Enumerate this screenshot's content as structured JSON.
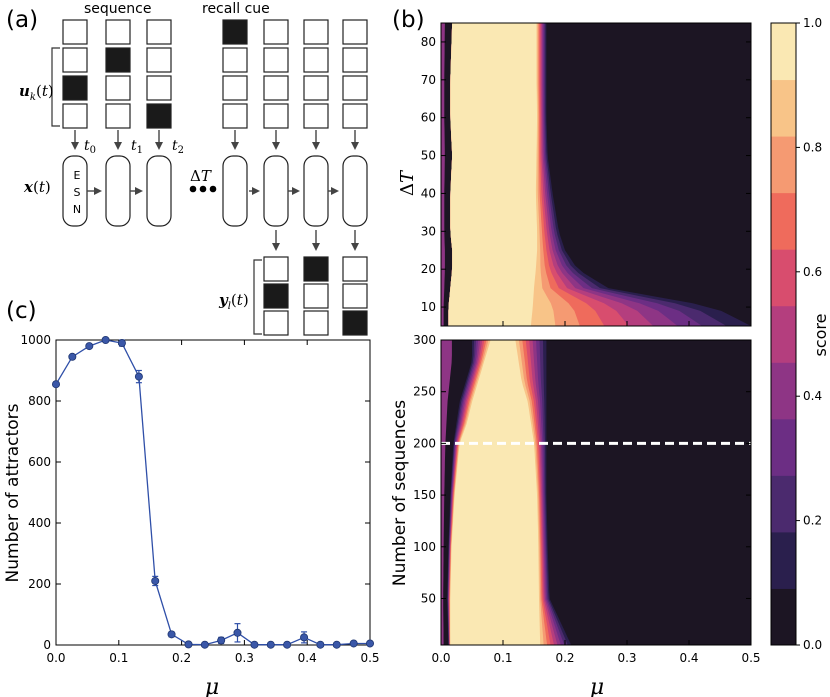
{
  "panel_a": {
    "label": "(a)",
    "sequence_label": "sequence",
    "recall_label": "recall cue",
    "input_label": "u_k(t)",
    "state_label": "x(t)",
    "output_label": "y_l(t)",
    "esn_letters": [
      "E",
      "S",
      "N"
    ],
    "time_labels": [
      "t0",
      "t1",
      "t2"
    ],
    "delta_label": "ΔT",
    "input_columns": [
      {
        "filled": [
          false,
          false,
          true,
          false
        ]
      },
      {
        "filled": [
          false,
          true,
          false,
          false
        ]
      },
      {
        "filled": [
          false,
          false,
          false,
          true
        ]
      },
      {
        "filled": [
          true,
          false,
          false,
          false
        ]
      },
      {
        "filled": [
          false,
          false,
          false,
          false
        ]
      },
      {
        "filled": [
          false,
          false,
          false,
          false
        ]
      },
      {
        "filled": [
          false,
          false,
          false,
          false
        ]
      }
    ],
    "output_columns": [
      {
        "filled": [
          false,
          true,
          false
        ]
      },
      {
        "filled": [
          true,
          false,
          false
        ]
      },
      {
        "filled": [
          false,
          false,
          true
        ]
      }
    ]
  },
  "panel_b": {
    "label": "(b)",
    "xlabel": "μ",
    "colorbar_label": "score",
    "colorbar_ticks": [
      "0.0",
      "0.2",
      "0.4",
      "0.6",
      "0.8",
      "1.0"
    ],
    "colors": [
      "#1c1523",
      "#2a1f4d",
      "#4b2a6e",
      "#6c2e84",
      "#8e3585",
      "#b43e7e",
      "#d84d6e",
      "#ef6b5c",
      "#f59a72",
      "#f8c488",
      "#fae8b3"
    ],
    "x_ticks": [
      "0.0",
      "0.1",
      "0.2",
      "0.3",
      "0.4",
      "0.5"
    ]
  },
  "panel_c": {
    "label": "(c)"
  },
  "chart_data": [
    {
      "type": "heatmap",
      "title": "",
      "xlabel": "μ",
      "ylabel": "ΔT",
      "xlim": [
        0,
        0.5
      ],
      "ylim": [
        5,
        85
      ],
      "yticks": [
        10,
        20,
        30,
        40,
        50,
        60,
        70,
        80
      ],
      "ytick_labels": [
        "10",
        "20",
        "30",
        "40",
        "50",
        "60",
        "70",
        "80"
      ],
      "colorbar": {
        "label": "score",
        "range": [
          0,
          1
        ]
      },
      "profile_y": [
        5,
        10,
        15,
        20,
        25,
        30,
        40,
        50,
        60,
        70,
        85
      ],
      "left_edge_mu": [
        0.012,
        0.012,
        0.015,
        0.018,
        0.018,
        0.015,
        0.015,
        0.018,
        0.015,
        0.015,
        0.018
      ],
      "plateau_right_mu": [
        0.145,
        0.148,
        0.15,
        0.153,
        0.155,
        0.155,
        0.153,
        0.154,
        0.155,
        0.154,
        0.154
      ],
      "right_edge_mu": [
        0.5,
        0.44,
        0.27,
        0.22,
        0.2,
        0.19,
        0.18,
        0.172,
        0.17,
        0.17,
        0.17
      ]
    },
    {
      "type": "heatmap",
      "title": "",
      "xlabel": "μ",
      "ylabel": "Number of sequences",
      "xlim": [
        0,
        0.5
      ],
      "ylim": [
        5,
        300
      ],
      "yticks": [
        50,
        100,
        150,
        200,
        250,
        300
      ],
      "ytick_labels": [
        "50",
        "100",
        "150",
        "200",
        "250",
        "300"
      ],
      "dashed_line_y": 200,
      "colorbar": {
        "label": "score",
        "range": [
          0,
          1
        ]
      },
      "profile_y": [
        5,
        50,
        100,
        150,
        200,
        220,
        240,
        260,
        280,
        300
      ],
      "left_edge_mu": [
        0.012,
        0.01,
        0.012,
        0.015,
        0.02,
        0.025,
        0.03,
        0.04,
        0.05,
        0.05
      ],
      "plateau_left_mu": [
        0.015,
        0.015,
        0.017,
        0.022,
        0.03,
        0.042,
        0.05,
        0.06,
        0.07,
        0.08
      ],
      "plateau_right_mu": [
        0.16,
        0.158,
        0.157,
        0.155,
        0.15,
        0.145,
        0.14,
        0.13,
        0.125,
        0.12
      ],
      "right_edge_mu": [
        0.21,
        0.175,
        0.172,
        0.17,
        0.17,
        0.17,
        0.17,
        0.17,
        0.17,
        0.17
      ]
    },
    {
      "type": "line",
      "title": "",
      "xlabel": "μ",
      "ylabel": "Number of attractors",
      "xlim": [
        0,
        0.5
      ],
      "ylim": [
        0,
        1000
      ],
      "xticks": [
        "0.0",
        "0.1",
        "0.2",
        "0.3",
        "0.4",
        "0.5"
      ],
      "yticks": [
        "0",
        "200",
        "400",
        "600",
        "800",
        "1000"
      ],
      "series": [
        {
          "name": "attractors",
          "x": [
            0.0,
            0.026,
            0.053,
            0.079,
            0.105,
            0.132,
            0.158,
            0.184,
            0.211,
            0.237,
            0.263,
            0.289,
            0.316,
            0.342,
            0.368,
            0.395,
            0.421,
            0.447,
            0.474,
            0.5
          ],
          "y": [
            855,
            945,
            980,
            1000,
            990,
            880,
            210,
            35,
            2,
            1,
            15,
            40,
            1,
            1,
            1,
            25,
            1,
            1,
            5,
            5
          ],
          "err": [
            0,
            0,
            0,
            0,
            10,
            20,
            15,
            8,
            0,
            0,
            10,
            30,
            0,
            0,
            0,
            18,
            0,
            0,
            0,
            0
          ]
        }
      ]
    }
  ]
}
